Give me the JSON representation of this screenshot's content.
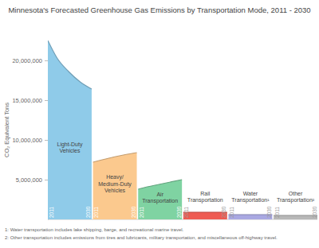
{
  "chart_data": {
    "type": "area",
    "title": "Minnesota's Forecasted Greenhouse Gas Emissions by Transportation Mode, 2011 - 2030",
    "y_label": "CO₂ Equivalent Tons",
    "x": [
      2011,
      2015,
      2020,
      2025,
      2030
    ],
    "xlim": [
      2011,
      2030
    ],
    "xticks": [
      2011,
      2030
    ],
    "ylim": [
      0,
      22500000
    ],
    "yticks": [
      {
        "value": 5000000,
        "label": "5,000,000"
      },
      {
        "value": 10000000,
        "label": "10,000,000"
      },
      {
        "value": 15000000,
        "label": "15,000,000"
      },
      {
        "value": 20000000,
        "label": "20,000,000"
      }
    ],
    "grid": false,
    "series": [
      {
        "name": "Light-Duty Vehicles",
        "color": "#8fcbe9",
        "values": [
          22500000,
          20300000,
          18600000,
          17300000,
          16400000
        ]
      },
      {
        "name": "Heavy/ Medium-Duty Vehicles",
        "color": "#fbc98e",
        "values": [
          7200000,
          7500000,
          7850000,
          8150000,
          8400000
        ]
      },
      {
        "name": "Air Transportation",
        "color": "#7fd3a2",
        "values": [
          3800000,
          4100000,
          4400000,
          4700000,
          5000000
        ]
      },
      {
        "name": "Rail Transportation",
        "color": "#ee5b52",
        "values": [
          900000,
          900000,
          900000,
          900000,
          900000
        ]
      },
      {
        "name": "Water Transportation¹",
        "color": "#a9a8e2",
        "values": [
          600000,
          600000,
          600000,
          600000,
          600000
        ]
      },
      {
        "name": "Other Transportation²",
        "color": "#b8b8b8",
        "values": [
          500000,
          500000,
          500000,
          500000,
          500000
        ]
      }
    ],
    "footnotes": [
      "1: Water transportation includes lake shipping, barge, and recreational marine travel.",
      "2: Other transportation includes emissions from tires and lubricants, military transportation, and miscellaneous off-highway travel."
    ]
  }
}
